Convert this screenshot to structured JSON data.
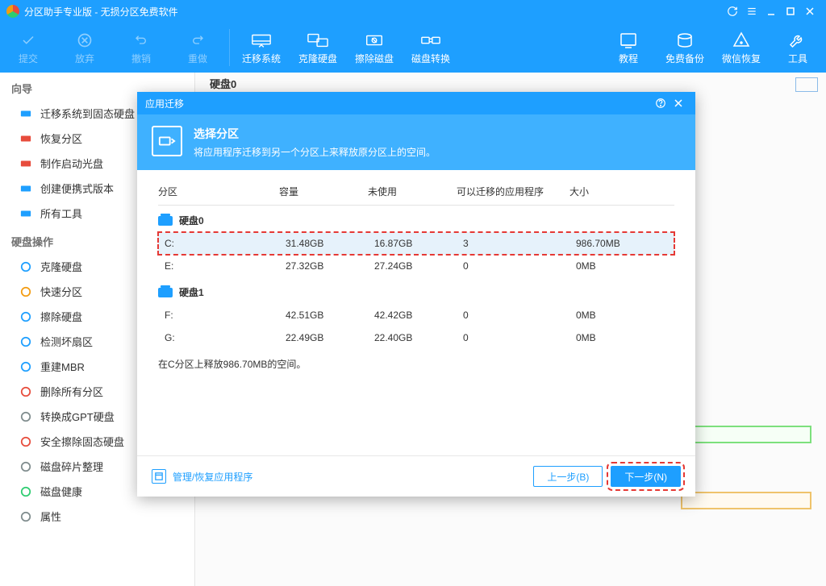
{
  "window": {
    "title": "分区助手专业版 - 无损分区免费软件"
  },
  "toolbar": {
    "commit": "提交",
    "discard": "放弃",
    "undo": "撤销",
    "redo": "重做",
    "migrate_os": "迁移系统",
    "clone_disk": "克隆硬盘",
    "wipe_disk": "擦除磁盘",
    "disk_convert": "磁盘转换",
    "tutorial": "教程",
    "free_backup": "免费备份",
    "wechat_recovery": "微信恢复",
    "tools": "工具"
  },
  "sidebar": {
    "wizard_title": "向导",
    "wizard": [
      "迁移系统到固态硬盘",
      "恢复分区",
      "制作启动光盘",
      "创建便携式版本",
      "所有工具"
    ],
    "diskops_title": "硬盘操作",
    "diskops": [
      "克隆硬盘",
      "快速分区",
      "擦除硬盘",
      "检测坏扇区",
      "重建MBR",
      "删除所有分区",
      "转换成GPT硬盘",
      "安全擦除固态硬盘",
      "磁盘碎片整理",
      "磁盘健康",
      "属性"
    ]
  },
  "content": {
    "disk0": "硬盘0"
  },
  "dialog": {
    "title": "应用迁移",
    "header_title": "选择分区",
    "header_sub": "将应用程序迁移到另一个分区上来释放原分区上的空间。",
    "columns": {
      "c1": "分区",
      "c2": "容量",
      "c3": "未使用",
      "c4": "可以迁移的应用程序",
      "c5": "大小"
    },
    "disks": [
      {
        "name": "硬盘0",
        "parts": [
          {
            "drive": "C:",
            "capacity": "31.48GB",
            "unused": "16.87GB",
            "apps": "3",
            "size": "986.70MB",
            "selected": true
          },
          {
            "drive": "E:",
            "capacity": "27.32GB",
            "unused": "27.24GB",
            "apps": "0",
            "size": "0MB",
            "selected": false
          }
        ]
      },
      {
        "name": "硬盘1",
        "parts": [
          {
            "drive": "F:",
            "capacity": "42.51GB",
            "unused": "42.42GB",
            "apps": "0",
            "size": "0MB",
            "selected": false
          },
          {
            "drive": "G:",
            "capacity": "22.49GB",
            "unused": "22.40GB",
            "apps": "0",
            "size": "0MB",
            "selected": false
          }
        ]
      }
    ],
    "hint": "在C分区上释放986.70MB的空间。",
    "manage_link": "管理/恢复应用程序",
    "prev": "上一步(B)",
    "next": "下一步(N)"
  },
  "colors": {
    "primary": "#1e9fff",
    "primary_light": "#3fb1ff",
    "highlight_red": "#e53935",
    "row_selected": "#e6f2fb"
  },
  "sidebar_icon_colors": [
    "#1e9fff",
    "#e74c3c",
    "#e74c3c",
    "#1e9fff",
    "#1e9fff",
    "#1e9fff",
    "#f39c12",
    "#1e9fff",
    "#1e9fff",
    "#1e9fff",
    "#e74c3c",
    "#7f8c8d",
    "#e74c3c",
    "#7f8c8d",
    "#2ecc71",
    "#7f8c8d"
  ]
}
